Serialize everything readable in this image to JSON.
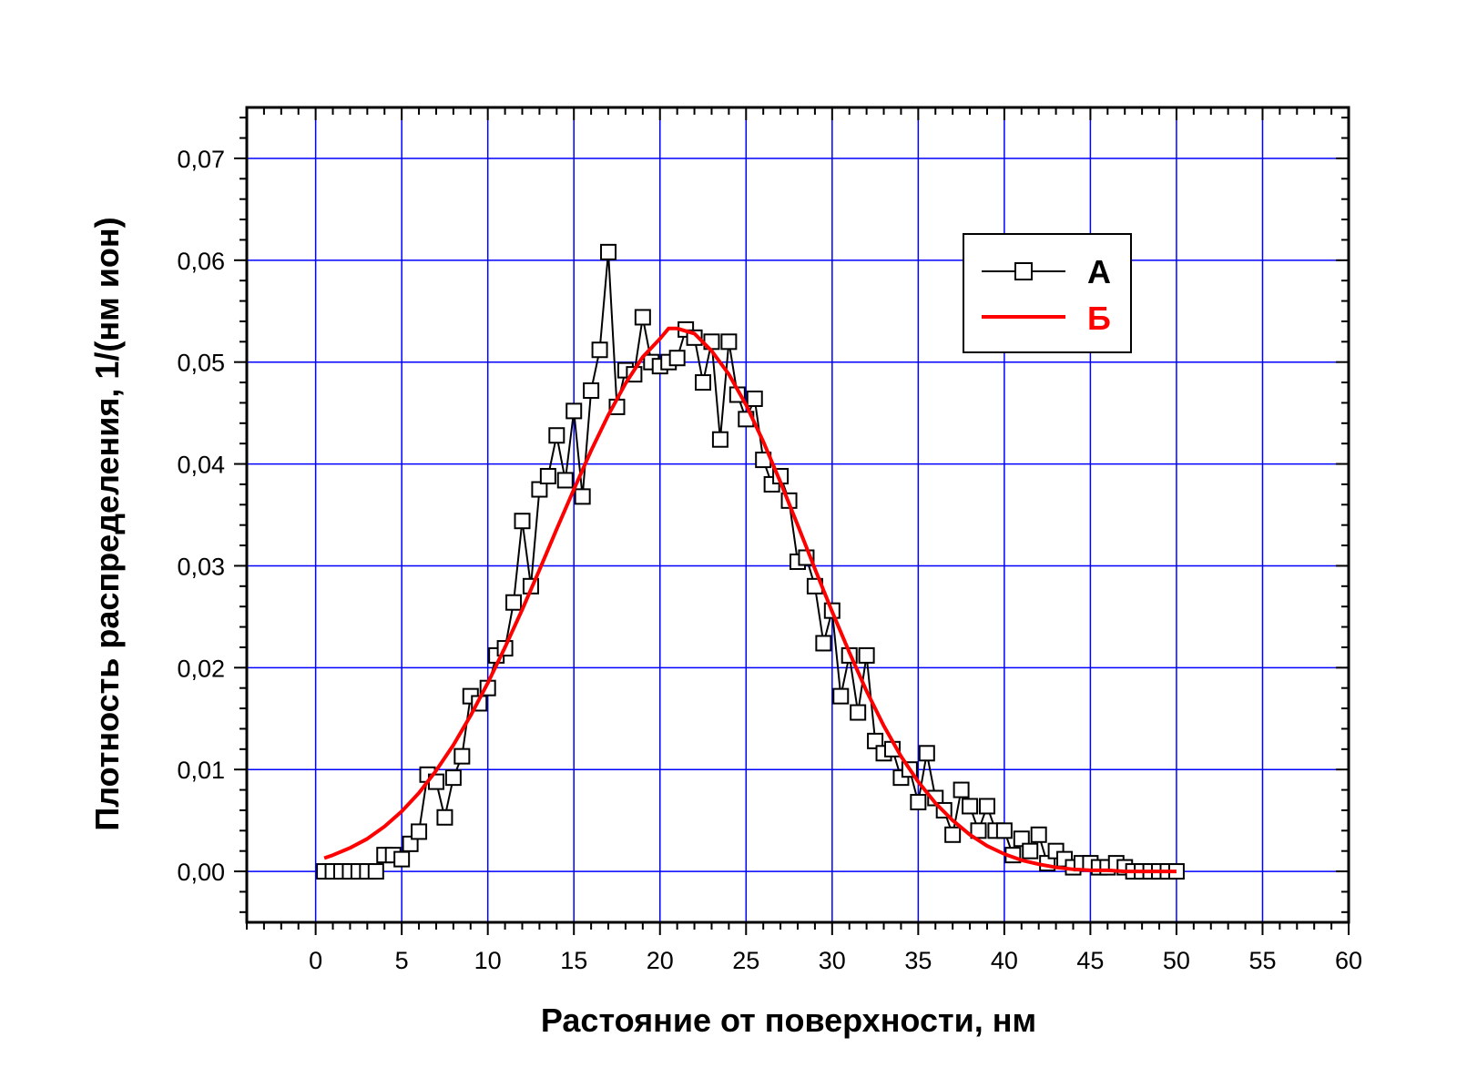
{
  "chart_data": {
    "type": "line",
    "xlabel": "Растояние от поверхности, нм",
    "ylabel": "Плотность распределения, 1/(нм ион)",
    "xlim": [
      -4,
      60
    ],
    "ylim": [
      -0.005,
      0.075
    ],
    "x_ticks": [
      0,
      5,
      10,
      15,
      20,
      25,
      30,
      35,
      40,
      45,
      50,
      55,
      60
    ],
    "x_tick_labels": [
      "0",
      "5",
      "10",
      "15",
      "20",
      "25",
      "30",
      "35",
      "40",
      "45",
      "50",
      "55",
      "60"
    ],
    "y_ticks": [
      0,
      0.01,
      0.02,
      0.03,
      0.04,
      0.05,
      0.06,
      0.07
    ],
    "y_tick_labels": [
      "0,00",
      "0,01",
      "0,02",
      "0,03",
      "0,04",
      "0,05",
      "0,06",
      "0,07"
    ],
    "grid": true,
    "grid_color": "#0000ff",
    "legend_position": "top-right",
    "series": [
      {
        "name": "А",
        "style": "line-with-open-square-markers",
        "color": "#000000",
        "x": [
          0.5,
          1,
          1.5,
          2,
          2.5,
          3,
          3.5,
          4,
          4.5,
          5,
          5.5,
          6,
          6.5,
          7,
          7.5,
          8,
          8.5,
          9,
          9.5,
          10,
          10.5,
          11,
          11.5,
          12,
          12.5,
          13,
          13.5,
          14,
          14.5,
          15,
          15.5,
          16,
          16.5,
          17,
          17.5,
          18,
          18.5,
          19,
          19.5,
          20,
          20.5,
          21,
          21.5,
          22,
          22.5,
          23,
          23.5,
          24,
          24.5,
          25,
          25.5,
          26,
          26.5,
          27,
          27.5,
          28,
          28.5,
          29,
          29.5,
          30,
          30.5,
          31,
          31.5,
          32,
          32.5,
          33,
          33.5,
          34,
          34.5,
          35,
          35.5,
          36,
          36.5,
          37,
          37.5,
          38,
          38.5,
          39,
          39.5,
          40,
          40.5,
          41,
          41.5,
          42,
          42.5,
          43,
          43.5,
          44,
          44.5,
          45,
          45.5,
          46,
          46.5,
          47,
          47.5,
          48,
          48.5,
          49,
          49.5,
          50
        ],
        "y": [
          0,
          0,
          0,
          0,
          0,
          0,
          0,
          0.0016,
          0.0016,
          0.0012,
          0.0027,
          0.0039,
          0.0095,
          0.0088,
          0.0053,
          0.0092,
          0.0113,
          0.0172,
          0.0165,
          0.018,
          0.0212,
          0.0219,
          0.0264,
          0.0344,
          0.028,
          0.0375,
          0.0388,
          0.0428,
          0.0384,
          0.0452,
          0.0368,
          0.0472,
          0.0512,
          0.0608,
          0.0456,
          0.0492,
          0.0488,
          0.0544,
          0.05,
          0.0496,
          0.05,
          0.0504,
          0.0532,
          0.0524,
          0.048,
          0.052,
          0.0424,
          0.052,
          0.0468,
          0.0444,
          0.0464,
          0.0404,
          0.038,
          0.0388,
          0.0364,
          0.0304,
          0.0308,
          0.028,
          0.0224,
          0.0256,
          0.0172,
          0.0212,
          0.0156,
          0.0212,
          0.0128,
          0.0116,
          0.012,
          0.0092,
          0.01,
          0.0068,
          0.0116,
          0.0072,
          0.006,
          0.0036,
          0.008,
          0.0064,
          0.004,
          0.0064,
          0.004,
          0.004,
          0.0016,
          0.0032,
          0.002,
          0.0036,
          0.0008,
          0.002,
          0.0012,
          0.0004,
          0.0008,
          0.0008,
          0.0004,
          0.0004,
          0.0008,
          0.0004,
          0,
          0,
          0,
          0,
          0,
          0
        ]
      },
      {
        "name": "Б",
        "style": "line",
        "color": "#ff0000",
        "x": [
          0.5,
          1,
          2,
          3,
          4,
          5,
          6,
          7,
          8,
          9,
          10,
          11,
          12,
          13,
          14,
          15,
          16,
          17,
          18,
          19,
          20,
          20.5,
          21,
          22,
          23,
          24,
          25,
          26,
          27,
          28,
          29,
          30,
          31,
          32,
          33,
          34,
          35,
          36,
          37,
          38,
          39,
          40,
          41,
          42,
          43,
          44,
          45,
          46,
          47,
          48,
          49,
          50
        ],
        "y": [
          0.0013,
          0.0016,
          0.0023,
          0.0032,
          0.0044,
          0.0059,
          0.0077,
          0.0099,
          0.0124,
          0.0153,
          0.0185,
          0.022,
          0.0257,
          0.0296,
          0.0336,
          0.0375,
          0.0413,
          0.0448,
          0.0479,
          0.0505,
          0.0523,
          0.0533,
          0.0533,
          0.0528,
          0.0511,
          0.0488,
          0.0458,
          0.0422,
          0.0382,
          0.034,
          0.0297,
          0.0255,
          0.0215,
          0.0177,
          0.0143,
          0.0113,
          0.0088,
          0.0067,
          0.005,
          0.0036,
          0.0025,
          0.0017,
          0.0011,
          0.0007,
          0.0004,
          0.0002,
          0.0001,
          0.0001,
          0.0,
          0.0,
          0.0,
          0.0
        ]
      }
    ]
  }
}
